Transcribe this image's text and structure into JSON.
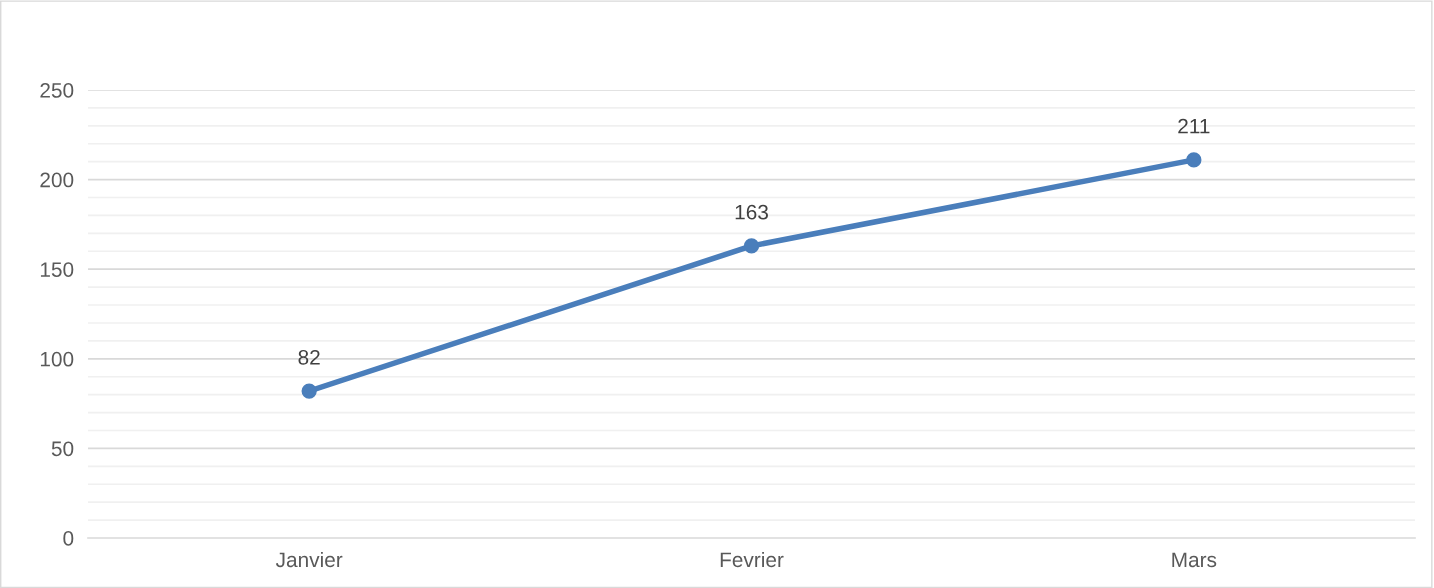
{
  "chart_data": {
    "type": "line",
    "categories": [
      "Janvier",
      "Fevrier",
      "Mars"
    ],
    "series": [
      {
        "color": "#4a7ebb",
        "values": [
          82,
          163,
          211
        ]
      }
    ],
    "ylim": [
      0,
      250
    ],
    "yticks": [
      0,
      {
        "value": 10,
        "label": null
      },
      {
        "value": 20,
        "label": null
      },
      {
        "value": 30,
        "label": null
      },
      {
        "value": 40,
        "label": null
      },
      50,
      {
        "value": 60,
        "label": null
      },
      {
        "value": 70,
        "label": null
      },
      {
        "value": 80,
        "label": null
      },
      {
        "value": 90,
        "label": null
      },
      100,
      {
        "value": 110,
        "label": null
      },
      {
        "value": 120,
        "label": null
      },
      {
        "value": 130,
        "label": null
      },
      {
        "value": 140,
        "label": null
      },
      150,
      {
        "value": 160,
        "label": null
      },
      {
        "value": 170,
        "label": null
      },
      {
        "value": 180,
        "label": null
      },
      {
        "value": 190,
        "label": null
      },
      200,
      {
        "value": 210,
        "label": null
      },
      {
        "value": 220,
        "label": null
      },
      {
        "value": 230,
        "label": null
      },
      {
        "value": 240,
        "label": null
      },
      250
    ],
    "grid": "y",
    "marker": "circle",
    "line_style": "solid",
    "data_labels": true,
    "legend": false
  }
}
